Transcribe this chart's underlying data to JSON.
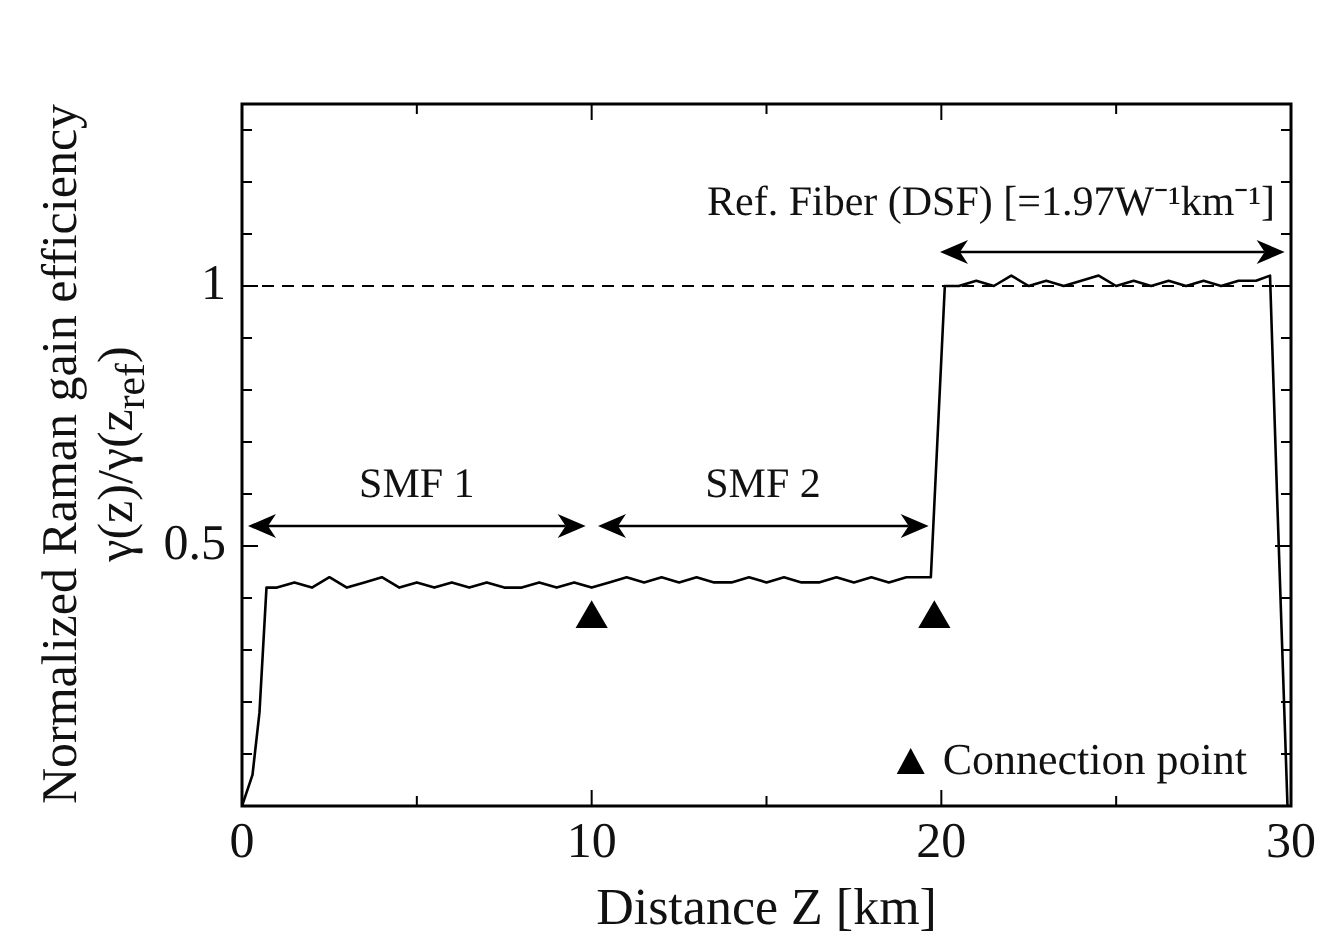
{
  "chart_data": {
    "type": "line",
    "xlabel": "Distance Z [km]",
    "ylabel": "Normalized Raman gain efficiency\nγ(z)/γ(z$_{ref}$)",
    "xlim": [
      0,
      30
    ],
    "xticks": [
      0,
      {
        "value": 5,
        "label": null
      },
      10,
      {
        "value": 15,
        "label": null
      },
      20,
      {
        "value": 25,
        "label": null
      },
      30
    ],
    "ylim": [
      0,
      1.35
    ],
    "yticks": [
      {
        "value": 0,
        "label": null
      },
      {
        "value": 0.1,
        "label": null
      },
      {
        "value": 0.2,
        "label": null
      },
      {
        "value": 0.3,
        "label": null
      },
      {
        "value": 0.4,
        "label": null
      },
      0.5,
      {
        "value": 0.6,
        "label": null
      },
      {
        "value": 0.7,
        "label": null
      },
      {
        "value": 0.8,
        "label": null
      },
      {
        "value": 0.9,
        "label": null
      },
      1,
      {
        "value": 1.1,
        "label": null
      },
      {
        "value": 1.2,
        "label": null
      },
      {
        "value": 1.3,
        "label": null
      }
    ],
    "grid": false,
    "legend": "bottom right",
    "line_style": "solid",
    "marker": "none",
    "series": [
      {
        "color": "#000000",
        "x": [
          0,
          0.3,
          0.5,
          0.7,
          1.0,
          1.5,
          2.0,
          2.5,
          3.0,
          3.5,
          4.0,
          4.5,
          5.0,
          5.5,
          6.0,
          6.5,
          7.0,
          7.5,
          8.0,
          8.5,
          9.0,
          9.5,
          10.0,
          10.5,
          11.0,
          11.5,
          12.0,
          12.5,
          13.0,
          13.5,
          14.0,
          14.5,
          15.0,
          15.5,
          16.0,
          16.5,
          17.0,
          17.5,
          18.0,
          18.5,
          19.0,
          19.5,
          19.7,
          20.1,
          20.5,
          21.0,
          21.5,
          22.0,
          22.5,
          23.0,
          23.5,
          24.0,
          24.5,
          25.0,
          25.5,
          26.0,
          26.5,
          27.0,
          27.5,
          28.0,
          28.5,
          29.0,
          29.4,
          29.6,
          29.9
        ],
        "values": [
          0,
          0.06,
          0.18,
          0.42,
          0.42,
          0.43,
          0.42,
          0.44,
          0.42,
          0.43,
          0.44,
          0.42,
          0.43,
          0.42,
          0.43,
          0.42,
          0.43,
          0.42,
          0.42,
          0.43,
          0.42,
          0.43,
          0.42,
          0.43,
          0.44,
          0.43,
          0.44,
          0.43,
          0.44,
          0.43,
          0.43,
          0.44,
          0.43,
          0.44,
          0.43,
          0.43,
          0.44,
          0.43,
          0.44,
          0.43,
          0.44,
          0.44,
          0.44,
          1.0,
          1.0,
          1.01,
          1.0,
          1.02,
          1.0,
          1.01,
          1.0,
          1.01,
          1.02,
          1.0,
          1.01,
          1.0,
          1.01,
          1.0,
          1.01,
          1.0,
          1.01,
          1.01,
          1.02,
          0.6,
          0
        ]
      },
      {
        "name": "Connection point",
        "type": "scatter",
        "marker": "triangle",
        "color": "#000000",
        "x": [
          10,
          19.8
        ],
        "values": [
          0.36,
          0.36
        ]
      }
    ],
    "ref_lines": [
      {
        "axis": "y",
        "value": 1,
        "line_style": "dashed",
        "color": "#000000"
      }
    ],
    "annotations": [
      "SMF 1",
      "SMF 2",
      "Ref. Fiber (DSF) [=1.97W⁻¹km⁻¹]"
    ]
  }
}
